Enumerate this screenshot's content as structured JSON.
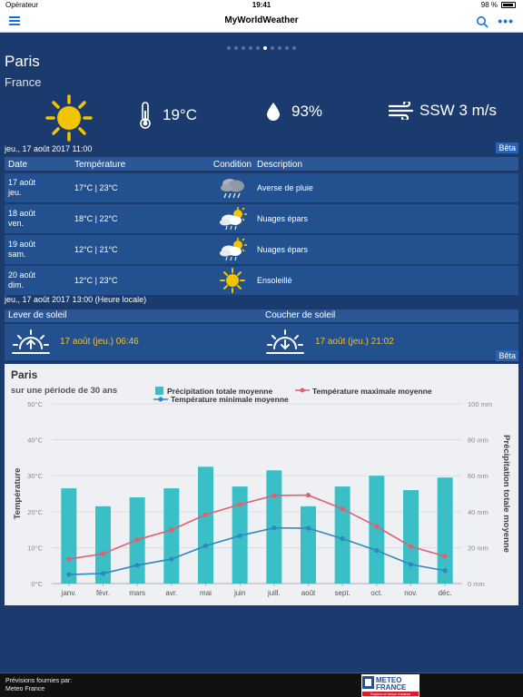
{
  "status": {
    "carrier": "Opérateur",
    "time": "19:41",
    "battery": "98 %"
  },
  "nav": {
    "title": "MyWorldWeather"
  },
  "page_dots": {
    "count": 10,
    "active": 5
  },
  "location": {
    "city": "Paris",
    "country": "France"
  },
  "current": {
    "temperature": "19°C",
    "humidity": "93%",
    "wind": "SSW 3 m/s"
  },
  "forecast": {
    "timestamp": "jeu., 17 août 2017 11:00",
    "beta": "Bêta",
    "headers": {
      "date": "Date",
      "temp": "Température",
      "cond": "Condition",
      "desc": "Description"
    },
    "rows": [
      {
        "date1": "17 août",
        "date2": "jeu.",
        "temp": "17°C | 23°C",
        "icon": "rain-cloud-icon",
        "desc": "Averse de pluie"
      },
      {
        "date1": "18 août",
        "date2": "ven.",
        "temp": "18°C | 22°C",
        "icon": "sun-cloud-rain-icon",
        "desc": "Nuages épars"
      },
      {
        "date1": "19 août",
        "date2": "sam.",
        "temp": "12°C | 21°C",
        "icon": "sun-cloud-rain-icon",
        "desc": "Nuages épars"
      },
      {
        "date1": "20 août",
        "date2": "dim.",
        "temp": "12°C | 23°C",
        "icon": "sun-icon",
        "desc": "Ensoleillé"
      }
    ]
  },
  "sun": {
    "timestamp": "jeu., 17 août 2017 13:00 (Heure locale)",
    "sunrise_label": "Lever de soleil",
    "sunset_label": "Coucher de soleil",
    "sunrise": "17 août (jeu.) 06:46",
    "sunset": "17 août (jeu.) 21:02",
    "beta": "Bêta"
  },
  "chart_data": {
    "type": "bar+line",
    "title": "Paris",
    "subtitle": "sur une période de 30 ans",
    "categories": [
      "janv.",
      "févr.",
      "mars",
      "avr.",
      "mai",
      "juin",
      "juill.",
      "août",
      "sept.",
      "oct.",
      "nov.",
      "déc."
    ],
    "series": [
      {
        "name": "Précipitation totale moyenne",
        "type": "bar",
        "axis": "right",
        "color": "#3bbfc7",
        "values": [
          53,
          43,
          48,
          53,
          65,
          54,
          63,
          43,
          54,
          60,
          52,
          59
        ]
      },
      {
        "name": "Température maximale moyenne",
        "type": "line",
        "axis": "left",
        "color": "#e06070",
        "values": [
          6.8,
          8.3,
          12.2,
          14.9,
          19.2,
          22,
          24.5,
          24.6,
          20.8,
          15.9,
          10.3,
          7.6
        ]
      },
      {
        "name": "Température minimale moyenne",
        "type": "line",
        "axis": "left",
        "color": "#2f86c0",
        "values": [
          2.5,
          2.8,
          5.1,
          6.8,
          10.5,
          13.3,
          15.5,
          15.4,
          12.5,
          9.2,
          5.3,
          3.6
        ]
      }
    ],
    "ylabel_left": "Température",
    "ylabel_right": "Précipitation totale moyenne",
    "yticks_left": [
      "0°C",
      "10°C",
      "20°C",
      "30°C",
      "40°C",
      "50°C"
    ],
    "yticks_right": [
      "0 mm",
      "20 mm",
      "40 mm",
      "60 mm",
      "80 mm",
      "100 mm"
    ],
    "ylim_left": [
      0,
      50
    ],
    "ylim_right": [
      0,
      100
    ],
    "legend": "top"
  },
  "footer": {
    "line1": "Prévisions fournies par:",
    "line2": "Meteo France",
    "logo_text": "METEO FRANCE",
    "logo_tagline": "Toujours un temps d'avance"
  }
}
